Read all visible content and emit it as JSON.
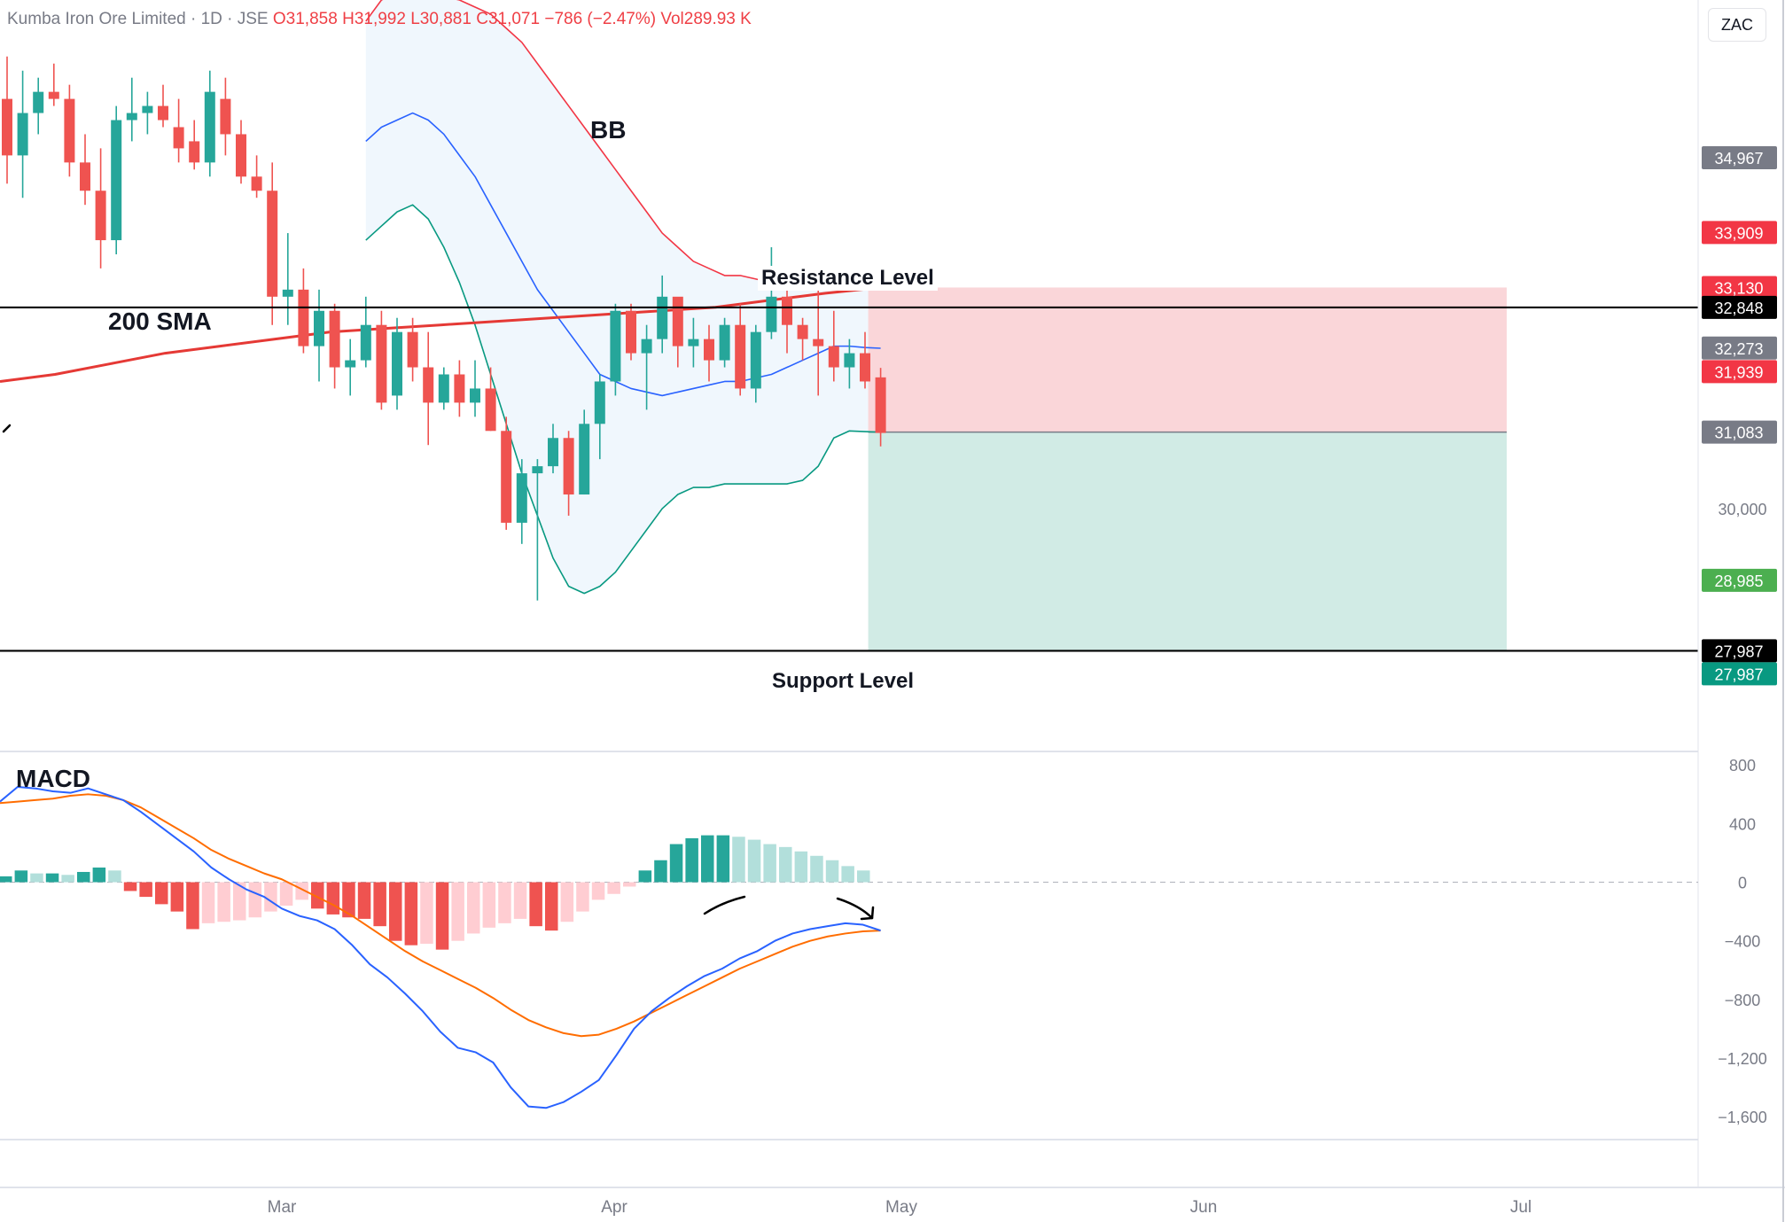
{
  "header": {
    "symbol": "Kumba Iron Ore Limited · 1D · JSE",
    "open_label": "O",
    "open": "31,858",
    "high_label": "H",
    "high": "31,992",
    "low_label": "L",
    "low": "30,881",
    "close_label": "C",
    "close": "31,071",
    "change": "−786 (−2.47%)",
    "volume_label": "Vol",
    "volume": "289.93 K"
  },
  "currency_button": "ZAC",
  "annotations": {
    "bb": "BB",
    "sma": "200 SMA",
    "macd": "MACD",
    "resistance": "Resistance Level",
    "support": "Support Level"
  },
  "colors": {
    "up": "#26a69a",
    "down": "#ef5350",
    "up_light": "#b2dfdb",
    "down_light": "#ffcdd2",
    "bb_upper": "#f23645",
    "bb_basis": "#2962ff",
    "bb_lower": "#089981",
    "sma": "#e53935",
    "macd_line": "#2962ff",
    "signal_line": "#ff6d00",
    "stop_zone": "#fad6d9",
    "target_zone": "#d1ebe5"
  },
  "chart_data": [
    {
      "type": "candlestick",
      "title": "Kumba Iron Ore Limited · 1D · JSE",
      "x_ticks": [
        "Mar",
        "Apr",
        "May",
        "Jun",
        "Jul"
      ],
      "y_ticks": [
        30000
      ],
      "price_scale_labels": [
        {
          "value": "34,967",
          "color": "#787b86"
        },
        {
          "value": "33,909",
          "color": "#f23645"
        },
        {
          "value": "33,130",
          "color": "#f23645"
        },
        {
          "value": "32,848",
          "color": "#000000"
        },
        {
          "value": "32,273",
          "color": "#787b86"
        },
        {
          "value": "31,939",
          "color": "#f23645"
        },
        {
          "value": "31,083",
          "color": "#787b86"
        },
        {
          "value": "28,985",
          "color": "#4caf50"
        },
        {
          "value": "27,987",
          "color": "#000000"
        },
        {
          "value": "27,987",
          "color": "#089981"
        }
      ],
      "levels": {
        "resistance": 32848,
        "support": 27987
      },
      "position": {
        "entry": 31083,
        "stop": 33130,
        "target": 27987
      },
      "candles": [
        [
          35800,
          36400,
          34600,
          35000
        ],
        [
          35000,
          36200,
          34400,
          35600
        ],
        [
          35600,
          36100,
          35300,
          35900
        ],
        [
          35900,
          36300,
          35700,
          35800
        ],
        [
          35800,
          36000,
          34700,
          34900
        ],
        [
          34900,
          35300,
          34300,
          34500
        ],
        [
          34500,
          35100,
          33400,
          33800
        ],
        [
          33800,
          35700,
          33600,
          35500
        ],
        [
          35500,
          36100,
          35200,
          35600
        ],
        [
          35600,
          35900,
          35300,
          35700
        ],
        [
          35700,
          36000,
          35400,
          35500
        ],
        [
          35400,
          35800,
          34900,
          35100
        ],
        [
          35200,
          35500,
          34800,
          34900
        ],
        [
          34900,
          36200,
          34700,
          35900
        ],
        [
          35800,
          36100,
          35000,
          35300
        ],
        [
          35300,
          35500,
          34600,
          34700
        ],
        [
          34700,
          35000,
          34400,
          34500
        ],
        [
          34500,
          34900,
          32600,
          33000
        ],
        [
          33000,
          33900,
          32600,
          33100
        ],
        [
          33100,
          33400,
          32200,
          32300
        ],
        [
          32300,
          33100,
          31800,
          32800
        ],
        [
          32800,
          32900,
          31700,
          32000
        ],
        [
          32000,
          32400,
          31600,
          32100
        ],
        [
          32100,
          33000,
          32000,
          32600
        ],
        [
          32600,
          32800,
          31400,
          31500
        ],
        [
          31600,
          32700,
          31400,
          32500
        ],
        [
          32500,
          32700,
          31800,
          32000
        ],
        [
          32000,
          32500,
          30900,
          31500
        ],
        [
          31500,
          32000,
          31400,
          31900
        ],
        [
          31900,
          32100,
          31300,
          31500
        ],
        [
          31500,
          32100,
          31300,
          31700
        ],
        [
          31700,
          32000,
          31100,
          31100
        ],
        [
          31100,
          31300,
          29700,
          29800
        ],
        [
          29800,
          30700,
          29500,
          30500
        ],
        [
          30500,
          30700,
          28700,
          30600
        ],
        [
          30600,
          31200,
          30500,
          31000
        ],
        [
          31000,
          31100,
          29900,
          30200
        ],
        [
          30200,
          31400,
          30200,
          31200
        ],
        [
          31200,
          31900,
          30700,
          31800
        ],
        [
          31800,
          32900,
          31600,
          32800
        ],
        [
          32800,
          32900,
          32100,
          32200
        ],
        [
          32200,
          32600,
          31400,
          32400
        ],
        [
          32400,
          33300,
          32200,
          33000
        ],
        [
          33000,
          32900,
          32000,
          32300
        ],
        [
          32300,
          32700,
          32000,
          32400
        ],
        [
          32400,
          32600,
          31800,
          32100
        ],
        [
          32100,
          32700,
          32000,
          32600
        ],
        [
          32600,
          32900,
          31600,
          31700
        ],
        [
          31700,
          32600,
          31500,
          32500
        ],
        [
          32500,
          33700,
          32400,
          33000
        ],
        [
          33000,
          33200,
          32200,
          32600
        ],
        [
          32600,
          32700,
          32100,
          32400
        ],
        [
          32400,
          33100,
          31600,
          32300
        ],
        [
          32300,
          32800,
          31800,
          32000
        ],
        [
          32000,
          32400,
          31700,
          32200
        ],
        [
          32200,
          32500,
          31700,
          31800
        ],
        [
          31858,
          31992,
          30881,
          31071
        ]
      ],
      "bb_upper": [
        36900,
        37200,
        37300,
        37350,
        37300,
        37250,
        37200,
        37100,
        37000,
        36800,
        36600,
        36300,
        36000,
        35700,
        35400,
        35100,
        34800,
        34500,
        34200,
        33900,
        33700,
        33500,
        33400,
        33300,
        33300,
        33250,
        33200,
        33250,
        33300,
        33350,
        33400,
        33400,
        33380,
        33300
      ],
      "bb_basis": [
        35200,
        35400,
        35500,
        35600,
        35500,
        35300,
        35000,
        34700,
        34300,
        33900,
        33500,
        33100,
        32800,
        32500,
        32200,
        31900,
        31800,
        31700,
        31650,
        31600,
        31650,
        31700,
        31750,
        31800,
        31800,
        31850,
        31900,
        32000,
        32100,
        32200,
        32300,
        32300,
        32280,
        32270
      ],
      "bb_lower": [
        33800,
        34000,
        34200,
        34300,
        34100,
        33700,
        33200,
        32600,
        31900,
        31200,
        30500,
        29900,
        29300,
        28900,
        28800,
        28900,
        29100,
        29400,
        29700,
        30000,
        30200,
        30300,
        30300,
        30350,
        30350,
        30350,
        30350,
        30350,
        30400,
        30600,
        31000,
        31100,
        31090,
        31083
      ],
      "sma_200": [
        31800,
        31900,
        32050,
        32200,
        32300,
        32400,
        32500,
        32550,
        32600,
        32650,
        32700,
        32750,
        32800,
        32850,
        32950,
        33050,
        33130
      ],
      "ylim": [
        26600,
        37200
      ]
    },
    {
      "type": "bar+line",
      "title": "MACD",
      "y_ticks": [
        800,
        400,
        0,
        -400,
        -800,
        -1200,
        -1600
      ],
      "ylim": [
        -1750,
        880
      ],
      "histogram": [
        40,
        80,
        60,
        60,
        50,
        70,
        100,
        80,
        -60,
        -100,
        -150,
        -200,
        -320,
        -280,
        -270,
        -260,
        -240,
        -200,
        -160,
        -120,
        -180,
        -220,
        -240,
        -250,
        -300,
        -400,
        -430,
        -420,
        -460,
        -400,
        -350,
        -310,
        -280,
        -250,
        -300,
        -330,
        -270,
        -200,
        -120,
        -80,
        -30,
        80,
        150,
        260,
        300,
        320,
        320,
        310,
        290,
        260,
        240,
        210,
        180,
        150,
        110,
        80
      ],
      "macd": [
        550,
        650,
        640,
        620,
        610,
        640,
        600,
        560,
        480,
        390,
        300,
        210,
        100,
        20,
        -50,
        -100,
        -180,
        -230,
        -260,
        -320,
        -430,
        -560,
        -650,
        -760,
        -880,
        -1020,
        -1130,
        -1160,
        -1230,
        -1400,
        -1530,
        -1540,
        -1500,
        -1430,
        -1350,
        -1180,
        -1000,
        -880,
        -790,
        -710,
        -640,
        -590,
        -520,
        -470,
        -400,
        -350,
        -320,
        -300,
        -280,
        -290,
        -330
      ],
      "signal": [
        540,
        550,
        560,
        570,
        590,
        600,
        590,
        560,
        510,
        440,
        370,
        300,
        220,
        160,
        110,
        60,
        20,
        -40,
        -100,
        -160,
        -230,
        -310,
        -390,
        -470,
        -540,
        -600,
        -660,
        -720,
        -790,
        -870,
        -940,
        -990,
        -1030,
        -1050,
        -1040,
        -1000,
        -950,
        -890,
        -830,
        -770,
        -710,
        -650,
        -590,
        -540,
        -490,
        -440,
        -400,
        -370,
        -350,
        -335,
        -330
      ]
    }
  ]
}
